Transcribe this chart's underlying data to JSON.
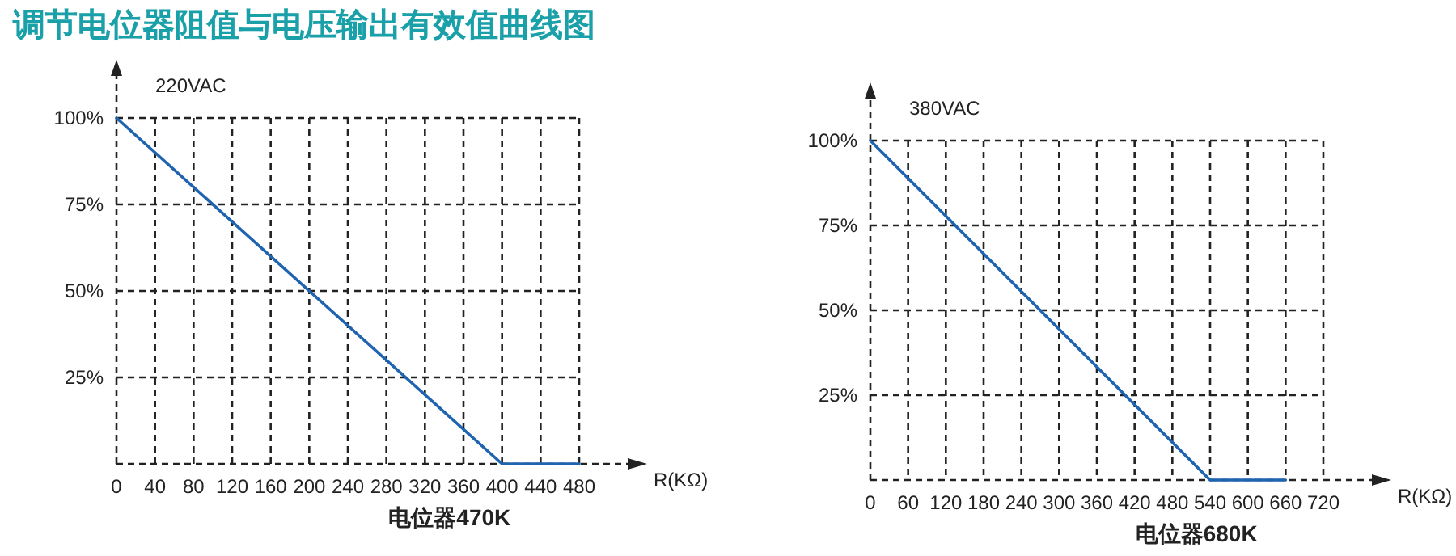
{
  "chart_data": [
    {
      "type": "line",
      "title": "调节电位器阻值与电压输出有效值曲线图",
      "x": [
        0,
        400,
        480
      ],
      "series": [
        {
          "color": "#1f64b0",
          "values": [
            100,
            0,
            0
          ]
        }
      ],
      "xlabel": "R(KΩ)",
      "xlim": [
        0,
        480
      ],
      "xticks": [
        0,
        40,
        80,
        120,
        160,
        200,
        240,
        280,
        320,
        360,
        400,
        440,
        480
      ],
      "ylim": [
        0,
        100
      ],
      "yticks": [
        {
          "value": 25,
          "label": "25%"
        },
        {
          "value": 50,
          "label": "50%"
        },
        {
          "value": 75,
          "label": "75%"
        },
        {
          "value": 100,
          "label": "100%"
        }
      ],
      "grid": true,
      "line_style": "solid",
      "annotations": [
        "220VAC",
        "电位器470K"
      ]
    },
    {
      "type": "line",
      "x": [
        0,
        540,
        660
      ],
      "series": [
        {
          "color": "#1f64b0",
          "values": [
            100,
            0,
            0
          ]
        }
      ],
      "xlabel": "R(KΩ)",
      "xlim": [
        0,
        720
      ],
      "xticks": [
        0,
        60,
        120,
        180,
        240,
        300,
        360,
        420,
        480,
        540,
        600,
        660,
        720
      ],
      "ylim": [
        0,
        100
      ],
      "yticks": [
        {
          "value": 25,
          "label": "25%"
        },
        {
          "value": 50,
          "label": "50%"
        },
        {
          "value": 75,
          "label": "75%"
        },
        {
          "value": 100,
          "label": "100%"
        }
      ],
      "grid": true,
      "line_style": "solid",
      "annotations": [
        "380VAC",
        "电位器680K"
      ]
    }
  ]
}
